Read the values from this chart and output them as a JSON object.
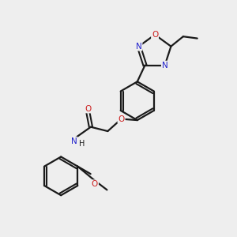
{
  "bg_color": "#eeeeee",
  "bond_color": "#1a1a1a",
  "n_color": "#2020cc",
  "o_color": "#cc2020",
  "text_color": "#1a1a1a",
  "figsize": [
    3.0,
    3.0
  ],
  "dpi": 100,
  "xlim": [
    0,
    10
  ],
  "ylim": [
    0,
    10
  ]
}
